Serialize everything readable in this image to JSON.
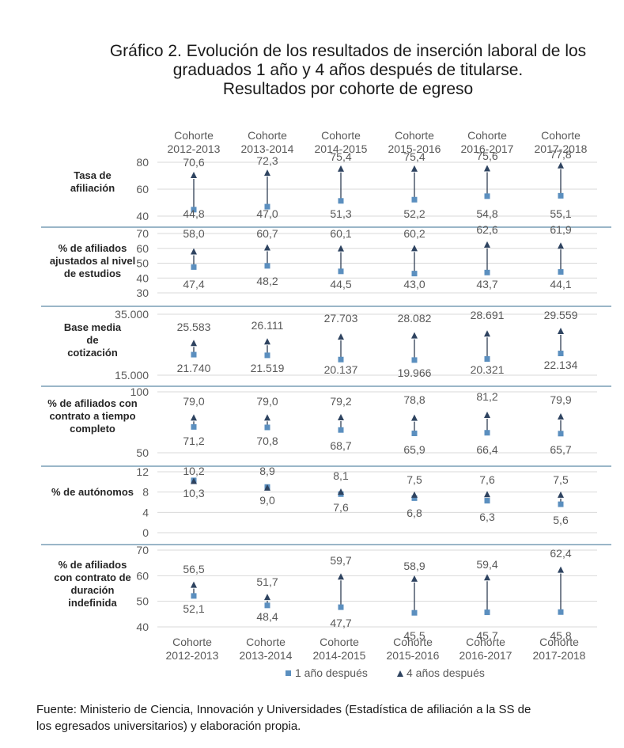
{
  "title_lines": [
    "Gráfico 2. Evolución de los resultados de inserción laboral de los",
    "graduados 1 año y 4 años después de titularse.",
    "Resultados por cohorte de egreso"
  ],
  "source_lines": [
    "Fuente: Ministerio de Ciencia, Innovación y Universidades (Estadística de afiliación a la SS de",
    "los egresados universitarios) y elaboración propia."
  ],
  "colors": {
    "one_year": "#5b8fbf",
    "four_years": "#2e4360",
    "arrow": "#1f2f45",
    "divider": "#5d8aa8",
    "grid": "#d9d9d9",
    "text": "#595959"
  },
  "chart_data": {
    "type": "scatter",
    "categories": [
      [
        "Cohorte",
        "2012-2013"
      ],
      [
        "Cohorte",
        "2013-2014"
      ],
      [
        "Cohorte",
        "2014-2015"
      ],
      [
        "Cohorte",
        "2015-2016"
      ],
      [
        "Cohorte",
        "2016-2017"
      ],
      [
        "Cohorte",
        "2017-2018"
      ]
    ],
    "legend": [
      {
        "name": "1 año después",
        "marker": "square"
      },
      {
        "name": "4 años después",
        "marker": "triangle"
      }
    ],
    "legend_position": "bottom",
    "panels": [
      {
        "label": [
          "Tasa de",
          "afiliación"
        ],
        "ticks": [
          "80",
          "60",
          "40"
        ],
        "tick_values": [
          80,
          60,
          40
        ],
        "ylim": [
          40,
          80
        ],
        "one_year": [
          44.8,
          47.0,
          51.3,
          52.2,
          54.8,
          55.1
        ],
        "four_years": [
          70.6,
          72.3,
          75.4,
          75.4,
          75.6,
          77.8
        ],
        "one_year_labels": [
          "44,8",
          "47,0",
          "51,3",
          "52,2",
          "54,8",
          "55,1"
        ],
        "four_years_labels": [
          "70,6",
          "72,3",
          "75,4",
          "75,4",
          "75,6",
          "77,8"
        ]
      },
      {
        "label": [
          "% de afiliados",
          "ajustados al nivel",
          "de estudios"
        ],
        "ticks": [
          "70",
          "60",
          "50",
          "40",
          "30"
        ],
        "tick_values": [
          70,
          60,
          50,
          40,
          30
        ],
        "ylim": [
          30,
          70
        ],
        "one_year": [
          47.4,
          48.2,
          44.5,
          43.0,
          43.7,
          44.1
        ],
        "four_years": [
          58.0,
          60.7,
          60.1,
          60.2,
          62.6,
          61.9
        ],
        "one_year_labels": [
          "47,4",
          "48,2",
          "44,5",
          "43,0",
          "43,7",
          "44,1"
        ],
        "four_years_labels": [
          "58,0",
          "60,7",
          "60,1",
          "60,2",
          "62,6",
          "61,9"
        ]
      },
      {
        "label": [
          "Base media",
          "de",
          "cotización"
        ],
        "ticks": [
          "35.000",
          "15.000"
        ],
        "tick_values": [
          35000,
          15000
        ],
        "ylim": [
          15000,
          35000
        ],
        "one_year": [
          21740,
          21519,
          20137,
          19966,
          20321,
          22134
        ],
        "four_years": [
          25583,
          26111,
          27703,
          28082,
          28691,
          29559
        ],
        "one_year_labels": [
          "21.740",
          "21.519",
          "20.137",
          "19.966",
          "20.321",
          "22.134"
        ],
        "four_years_labels": [
          "25.583",
          "26.111",
          "27.703",
          "28.082",
          "28.691",
          "29.559"
        ]
      },
      {
        "label": [
          "% de afiliados con",
          "contrato a tiempo",
          "completo"
        ],
        "ticks": [
          "100",
          "50"
        ],
        "tick_values": [
          100,
          50
        ],
        "ylim": [
          50,
          100
        ],
        "one_year": [
          71.2,
          70.8,
          68.7,
          65.9,
          66.4,
          65.7
        ],
        "four_years": [
          79.0,
          79.0,
          79.2,
          78.8,
          81.2,
          79.9
        ],
        "one_year_labels": [
          "71,2",
          "70,8",
          "68,7",
          "65,9",
          "66,4",
          "65,7"
        ],
        "four_years_labels": [
          "79,0",
          "79,0",
          "79,2",
          "78,8",
          "81,2",
          "79,9"
        ]
      },
      {
        "label": [
          "% de autónomos"
        ],
        "ticks": [
          "12",
          "8",
          "4",
          "0"
        ],
        "tick_values": [
          12,
          8,
          4,
          0
        ],
        "ylim": [
          0,
          12
        ],
        "one_year": [
          10.3,
          9.0,
          7.6,
          6.8,
          6.3,
          5.6
        ],
        "four_years": [
          10.2,
          8.9,
          8.1,
          7.5,
          7.6,
          7.5
        ],
        "one_year_labels": [
          "10,3",
          "9,0",
          "7,6",
          "6,8",
          "6,3",
          "5,6"
        ],
        "four_years_labels": [
          "10,2",
          "8,9",
          "8,1",
          "7,5",
          "7,6",
          "7,5"
        ]
      },
      {
        "label": [
          "% de afiliados",
          "con contrato de",
          "duración",
          "indefinida"
        ],
        "ticks": [
          "70",
          "60",
          "50",
          "40"
        ],
        "tick_values": [
          70,
          60,
          50,
          40
        ],
        "ylim": [
          40,
          70
        ],
        "one_year": [
          52.1,
          48.4,
          47.7,
          45.5,
          45.7,
          45.8
        ],
        "four_years": [
          56.5,
          51.7,
          59.7,
          58.9,
          59.4,
          62.4
        ],
        "one_year_labels": [
          "52,1",
          "48,4",
          "47,7",
          "45,5",
          "45,7",
          "45,8"
        ],
        "four_years_labels": [
          "56,5",
          "51,7",
          "59,7",
          "58,9",
          "59,4",
          "62,4"
        ]
      }
    ]
  }
}
